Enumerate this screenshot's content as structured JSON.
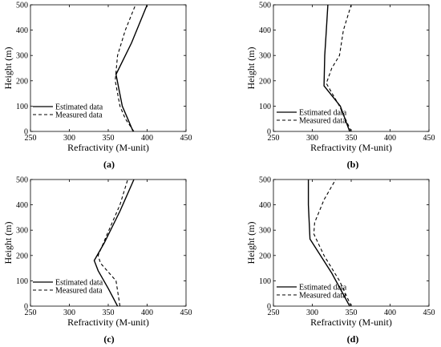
{
  "chart_data": [
    {
      "type": "line",
      "panel_label": "(a)",
      "xlabel": "Refractivity (M-unit)",
      "ylabel": "Height (m)",
      "xlim": [
        250,
        450
      ],
      "ylim": [
        0,
        500
      ],
      "xticks": [
        "250",
        "300",
        "350",
        "400",
        "450"
      ],
      "yticks": [
        "0",
        "100",
        "200",
        "300",
        "400",
        "500"
      ],
      "legend_position": "bottom-left",
      "series": [
        {
          "name": "Estimated data",
          "style": "solid",
          "points": [
            [
              382,
              0
            ],
            [
              375,
              50
            ],
            [
              368,
              100
            ],
            [
              360,
              225
            ],
            [
              380,
              350
            ],
            [
              400,
              500
            ]
          ]
        },
        {
          "name": "Measured data",
          "style": "dashed",
          "points": [
            [
              383,
              0
            ],
            [
              372,
              50
            ],
            [
              365,
              100
            ],
            [
              359,
              200
            ],
            [
              362,
              300
            ],
            [
              372,
              400
            ],
            [
              385,
              500
            ]
          ]
        }
      ]
    },
    {
      "type": "line",
      "panel_label": "(b)",
      "xlabel": "Refractivity (M-unit)",
      "ylabel": "Height (m)",
      "xlim": [
        250,
        450
      ],
      "ylim": [
        0,
        500
      ],
      "xticks": [
        "250",
        "300",
        "350",
        "400",
        "450"
      ],
      "yticks": [
        "0",
        "100",
        "200",
        "300",
        "400",
        "500"
      ],
      "legend_position": "bottom-left",
      "series": [
        {
          "name": "Estimated data",
          "style": "solid",
          "points": [
            [
              348,
              0
            ],
            [
              336,
              100
            ],
            [
              315,
              180
            ],
            [
              316,
              300
            ],
            [
              318,
              400
            ],
            [
              320,
              500
            ]
          ]
        },
        {
          "name": "Measured data",
          "style": "dashed",
          "points": [
            [
              350,
              0
            ],
            [
              335,
              100
            ],
            [
              318,
              190
            ],
            [
              325,
              250
            ],
            [
              335,
              300
            ],
            [
              340,
              400
            ],
            [
              350,
              500
            ]
          ]
        }
      ]
    },
    {
      "type": "line",
      "panel_label": "(c)",
      "xlabel": "Refractivity (M-unit)",
      "ylabel": "Height (m)",
      "xlim": [
        250,
        450
      ],
      "ylim": [
        0,
        500
      ],
      "xticks": [
        "250",
        "300",
        "350",
        "400",
        "450"
      ],
      "yticks": [
        "0",
        "100",
        "200",
        "300",
        "400",
        "500"
      ],
      "legend_position": "bottom-left",
      "series": [
        {
          "name": "Estimated data",
          "style": "solid",
          "points": [
            [
              362,
              0
            ],
            [
              350,
              70
            ],
            [
              337,
              140
            ],
            [
              332,
              180
            ],
            [
              345,
              250
            ],
            [
              365,
              375
            ],
            [
              383,
              500
            ]
          ]
        },
        {
          "name": "Measured data",
          "style": "dashed",
          "points": [
            [
              365,
              0
            ],
            [
              360,
              100
            ],
            [
              340,
              170
            ],
            [
              337,
              200
            ],
            [
              348,
              280
            ],
            [
              365,
              400
            ],
            [
              375,
              500
            ]
          ]
        }
      ]
    },
    {
      "type": "line",
      "panel_label": "(d)",
      "xlabel": "Refractivity (M-unit)",
      "ylabel": "Height (m)",
      "xlim": [
        250,
        450
      ],
      "ylim": [
        0,
        500
      ],
      "xticks": [
        "250",
        "300",
        "350",
        "400",
        "450"
      ],
      "yticks": [
        "0",
        "100",
        "200",
        "300",
        "400",
        "500"
      ],
      "legend_position": "bottom-left",
      "series": [
        {
          "name": "Estimated data",
          "style": "solid",
          "points": [
            [
              348,
              0
            ],
            [
              325,
              130
            ],
            [
              297,
              265
            ],
            [
              295,
              400
            ],
            [
              295,
              500
            ]
          ]
        },
        {
          "name": "Measured data",
          "style": "dashed",
          "points": [
            [
              350,
              0
            ],
            [
              335,
              100
            ],
            [
              315,
              200
            ],
            [
              302,
              285
            ],
            [
              303,
              330
            ],
            [
              315,
              420
            ],
            [
              330,
              500
            ]
          ]
        }
      ]
    }
  ]
}
